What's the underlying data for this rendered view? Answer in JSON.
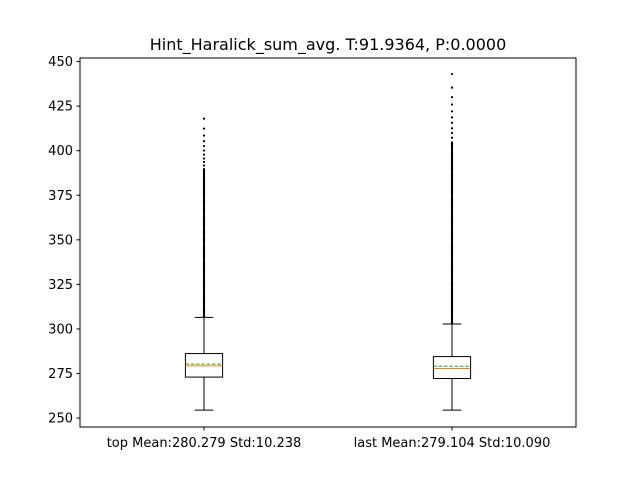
{
  "chart_data": {
    "type": "box",
    "title": "Hint_Haralick_sum_avg. T:91.9364, P:0.0000",
    "xlabel": "",
    "ylabel": "",
    "ylim": [
      245,
      452
    ],
    "yticks": [
      250,
      275,
      300,
      325,
      350,
      375,
      400,
      425,
      450
    ],
    "grid": false,
    "categories": [
      "top Mean:280.279 Std:10.238",
      "last Mean:279.104 Std:10.090"
    ],
    "boxes": [
      {
        "whisker_low": 254.5,
        "q1": 273.0,
        "median": 279.3,
        "mean": 280.3,
        "q3": 286.2,
        "whisker_high": 306.5,
        "outlier_max": 418.0,
        "dense_outliers_to": 390.0
      },
      {
        "whisker_low": 254.5,
        "q1": 272.2,
        "median": 277.8,
        "mean": 279.1,
        "q3": 284.5,
        "whisker_high": 302.8,
        "outlier_max": 443.0,
        "dense_outliers_to": 405.0
      }
    ],
    "colors": {
      "median": "#ff7f0e",
      "mean": "#2ca02c",
      "box": "#000000"
    }
  }
}
